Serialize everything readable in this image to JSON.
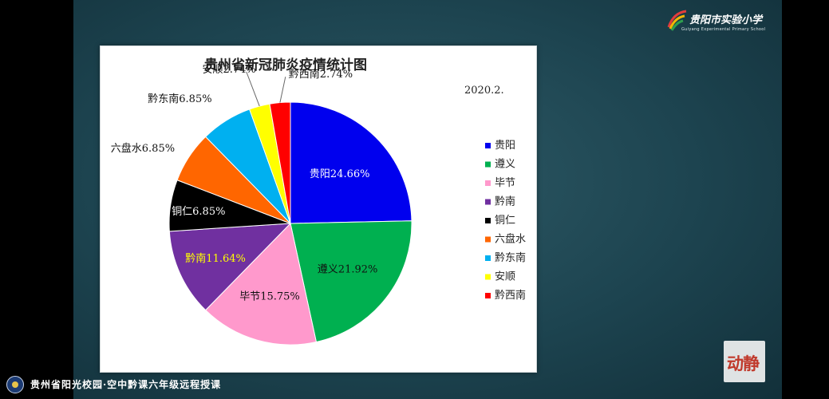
{
  "logo": {
    "text": "贵阳市实验小学",
    "subtitle": "Guiyang Experimental Primary School"
  },
  "badge": {
    "text": "动静"
  },
  "footer": {
    "text": "贵州省阳光校园·空中黔课六年级远程授课"
  },
  "chart_data": {
    "type": "pie",
    "title": "贵州省新冠肺炎疫情统计图",
    "subtitle": "2020.2.",
    "legend_position": "right",
    "slices": [
      {
        "name": "贵阳",
        "value": 24.66,
        "label": "贵阳24.66%",
        "color": "#0000ee"
      },
      {
        "name": "遵义",
        "value": 21.92,
        "label": "遵义21.92%",
        "color": "#00b050"
      },
      {
        "name": "毕节",
        "value": 15.75,
        "label": "毕节15.75%",
        "color": "#ff99cc"
      },
      {
        "name": "黔南",
        "value": 11.64,
        "label": "黔南11.64%",
        "color": "#7030a0"
      },
      {
        "name": "铜仁",
        "value": 6.85,
        "label": "铜仁6.85%",
        "color": "#000000"
      },
      {
        "name": "六盘水",
        "value": 6.85,
        "label": "六盘水6.85%",
        "color": "#ff6600"
      },
      {
        "name": "黔东南",
        "value": 6.85,
        "label": "黔东南6.85%",
        "color": "#00b0f0"
      },
      {
        "name": "安顺",
        "value": 2.74,
        "label": "安顺2.74%",
        "color": "#ffff00"
      },
      {
        "name": "黔西南",
        "value": 2.74,
        "label": "黔西南2.74%",
        "color": "#ff0000"
      }
    ]
  }
}
